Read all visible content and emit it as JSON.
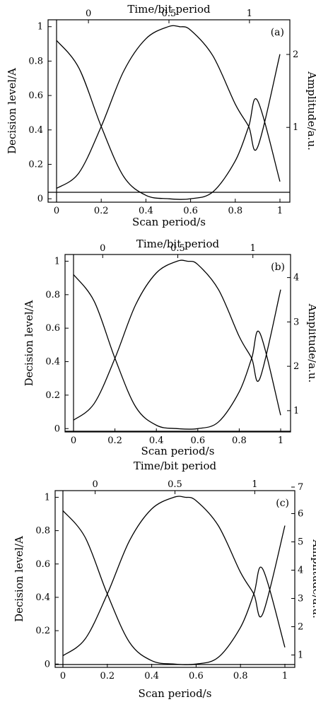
{
  "chart_data": [
    {
      "type": "line",
      "panel_label": "(a)",
      "title": "",
      "xlabel": "Scan period/s",
      "ylabel": "Decision level/A",
      "top_xlabel": "Time/bit period",
      "right_ylabel": "Amplitude/a.u.",
      "xlim": [
        0,
        1
      ],
      "ylim": [
        -0.02,
        1.04
      ],
      "xticks": [
        "0",
        "0.2",
        "0.4",
        "0.6",
        "0.8",
        "1"
      ],
      "yticks": [
        "0",
        "0.2",
        "0.4",
        "0.6",
        "0.8",
        "1"
      ],
      "top_ticks": [
        {
          "label": "0",
          "x": 0.167
        },
        {
          "label": "0.5",
          "x": 0.5
        },
        {
          "label": "1",
          "x": 0.833
        }
      ],
      "right_ticks": [
        {
          "label": "1",
          "y": 0.41
        },
        {
          "label": "2",
          "y": 0.81
        }
      ],
      "series": [
        {
          "x": [
            0,
            0.1,
            0.2,
            0.3,
            0.4,
            0.5,
            0.55,
            0.6,
            0.7,
            0.8,
            0.86,
            0.9,
            1.0
          ],
          "y": [
            0.06,
            0.15,
            0.42,
            0.74,
            0.93,
            1.0,
            1.0,
            0.98,
            0.83,
            0.55,
            0.42,
            0.3,
            0.84
          ]
        },
        {
          "x": [
            0,
            0.1,
            0.2,
            0.3,
            0.4,
            0.5,
            0.6,
            0.7,
            0.8,
            0.86,
            0.9,
            1.0
          ],
          "y": [
            0.92,
            0.76,
            0.42,
            0.13,
            0.02,
            0.0,
            0.0,
            0.04,
            0.22,
            0.42,
            0.57,
            0.1
          ]
        }
      ]
    },
    {
      "type": "line",
      "panel_label": "(b)",
      "title": "",
      "xlabel": "Scan period/s",
      "ylabel": "Decision level/A",
      "top_xlabel": "Time/bit period",
      "right_ylabel": "Amplitude/a.u.",
      "xlim": [
        0,
        1
      ],
      "ylim": [
        -0.02,
        1.04
      ],
      "xticks": [
        "0",
        "0.2",
        "0.4",
        "0.6",
        "0.8",
        "1"
      ],
      "yticks": [
        "0",
        "0.2",
        "0.4",
        "0.6",
        "0.8",
        "1"
      ],
      "top_ticks": [
        {
          "label": "0",
          "x": 0.167
        },
        {
          "label": "0.5",
          "x": 0.5
        },
        {
          "label": "1",
          "x": 0.833
        }
      ],
      "right_ticks": [
        {
          "label": "1",
          "y": 0.12
        },
        {
          "label": "2",
          "y": 0.37
        },
        {
          "label": "3",
          "y": 0.62
        },
        {
          "label": "4",
          "y": 0.87
        }
      ],
      "series": [
        {
          "x": [
            0,
            0.1,
            0.2,
            0.3,
            0.4,
            0.5,
            0.55,
            0.6,
            0.7,
            0.8,
            0.86,
            0.9,
            1.0
          ],
          "y": [
            0.05,
            0.15,
            0.42,
            0.74,
            0.93,
            1.0,
            1.0,
            0.98,
            0.83,
            0.55,
            0.42,
            0.3,
            0.83
          ]
        },
        {
          "x": [
            0,
            0.1,
            0.2,
            0.3,
            0.4,
            0.5,
            0.6,
            0.7,
            0.8,
            0.86,
            0.9,
            1.0
          ],
          "y": [
            0.92,
            0.76,
            0.42,
            0.13,
            0.02,
            0.0,
            0.0,
            0.04,
            0.22,
            0.42,
            0.57,
            0.08
          ]
        }
      ]
    },
    {
      "type": "line",
      "panel_label": "(c)",
      "title": "",
      "xlabel": "Scan period/s",
      "ylabel": "Decision level/A",
      "top_xlabel": "Time/bit period",
      "right_ylabel": "Amplitude/a.u.",
      "xlim": [
        0,
        1
      ],
      "ylim": [
        -0.02,
        1.04
      ],
      "xticks": [
        "0",
        "0.2",
        "0.4",
        "0.6",
        "0.8",
        "1"
      ],
      "yticks": [
        "0",
        "0.2",
        "0.4",
        "0.6",
        "0.8",
        "1"
      ],
      "top_ticks": [
        {
          "label": "0",
          "x": 0.167
        },
        {
          "label": "0.5",
          "x": 0.5
        },
        {
          "label": "1",
          "x": 0.833
        }
      ],
      "right_ticks": [
        {
          "label": "1",
          "y": 0.07
        },
        {
          "label": "2",
          "y": 0.23
        },
        {
          "label": "3",
          "y": 0.39
        },
        {
          "label": "4",
          "y": 0.55
        },
        {
          "label": "5",
          "y": 0.71
        },
        {
          "label": "6",
          "y": 0.87
        },
        {
          "label": "7",
          "y": 1.02
        }
      ],
      "series": [
        {
          "x": [
            0,
            0.1,
            0.2,
            0.3,
            0.4,
            0.5,
            0.55,
            0.6,
            0.7,
            0.8,
            0.86,
            0.9,
            1.0
          ],
          "y": [
            0.05,
            0.15,
            0.42,
            0.74,
            0.93,
            1.0,
            1.0,
            0.98,
            0.83,
            0.55,
            0.42,
            0.3,
            0.83
          ]
        },
        {
          "x": [
            0,
            0.1,
            0.2,
            0.3,
            0.4,
            0.5,
            0.6,
            0.7,
            0.8,
            0.86,
            0.9,
            1.0
          ],
          "y": [
            0.92,
            0.76,
            0.42,
            0.13,
            0.02,
            0.0,
            0.0,
            0.04,
            0.22,
            0.42,
            0.57,
            0.1
          ]
        }
      ]
    }
  ]
}
